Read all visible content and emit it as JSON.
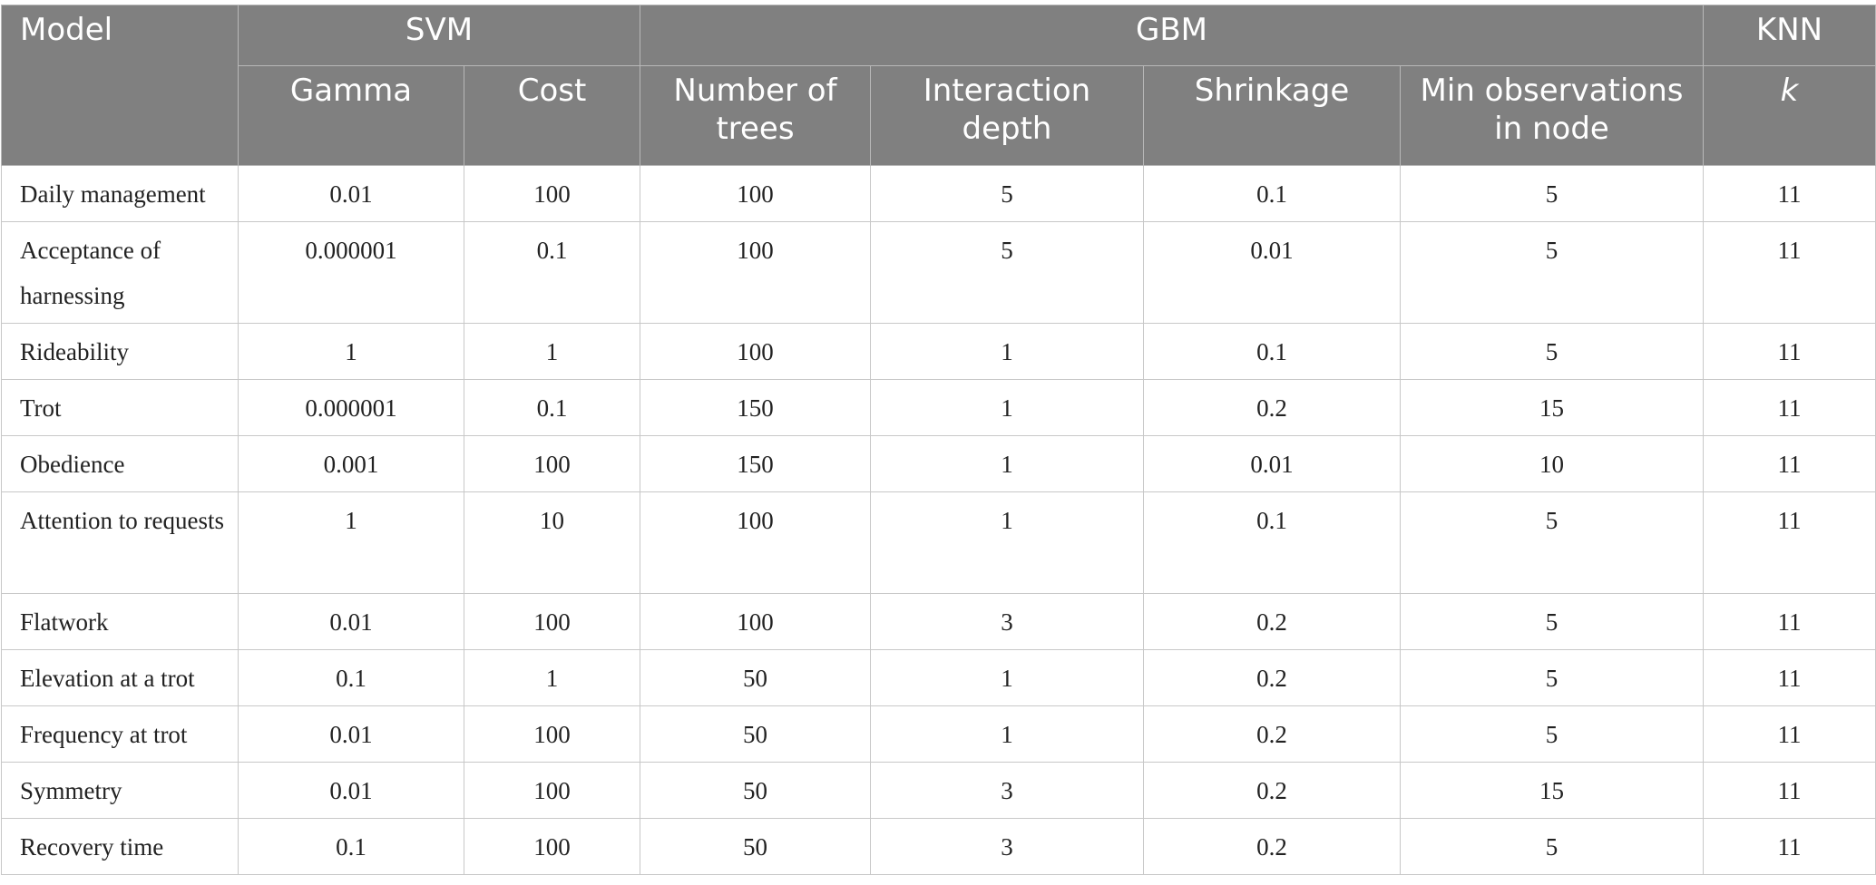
{
  "header": {
    "model_label": "Model",
    "groups": [
      {
        "label": "SVM"
      },
      {
        "label": "GBM"
      },
      {
        "label": "KNN"
      }
    ],
    "columns": [
      {
        "label": "Gamma"
      },
      {
        "label": "Cost"
      },
      {
        "label": "Number of trees"
      },
      {
        "label": "Interaction depth"
      },
      {
        "label": "Shrinkage"
      },
      {
        "label": "Min observations in node"
      },
      {
        "label": "k"
      }
    ]
  },
  "rows": [
    {
      "label": "Daily management",
      "values": [
        "0.01",
        "100",
        "100",
        "5",
        "0.1",
        "5",
        "11"
      ]
    },
    {
      "label": "Acceptance of harnessing",
      "values": [
        "0.000001",
        "0.1",
        "100",
        "5",
        "0.01",
        "5",
        "11"
      ]
    },
    {
      "label": "Rideability",
      "values": [
        "1",
        "1",
        "100",
        "1",
        "0.1",
        "5",
        "11"
      ]
    },
    {
      "label": "Trot",
      "values": [
        "0.000001",
        "0.1",
        "150",
        "1",
        "0.2",
        "15",
        "11"
      ]
    },
    {
      "label": "Obedience",
      "values": [
        "0.001",
        "100",
        "150",
        "1",
        "0.01",
        "10",
        "11"
      ]
    },
    {
      "label": "Attention to requests",
      "values": [
        "1",
        "10",
        "100",
        "1",
        "0.1",
        "5",
        "11"
      ]
    },
    {
      "label": "Flatwork",
      "values": [
        "0.01",
        "100",
        "100",
        "3",
        "0.2",
        "5",
        "11"
      ]
    },
    {
      "label": "Elevation at a trot",
      "values": [
        "0.1",
        "1",
        "50",
        "1",
        "0.2",
        "5",
        "11"
      ]
    },
    {
      "label": "Frequency at trot",
      "values": [
        "0.01",
        "100",
        "50",
        "1",
        "0.2",
        "5",
        "11"
      ]
    },
    {
      "label": "Symmetry",
      "values": [
        "0.01",
        "100",
        "50",
        "3",
        "0.2",
        "15",
        "11"
      ]
    },
    {
      "label": "Recovery time",
      "values": [
        "0.1",
        "100",
        "50",
        "3",
        "0.2",
        "5",
        "11"
      ]
    }
  ]
}
